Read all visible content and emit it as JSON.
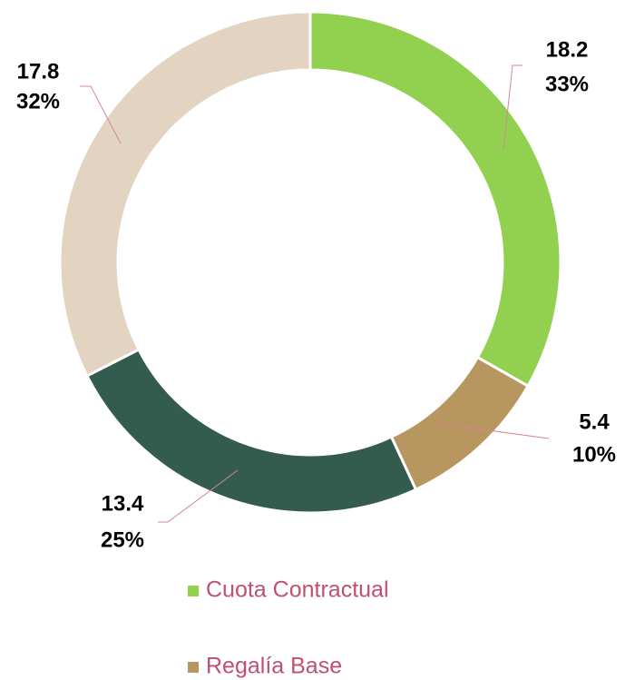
{
  "chart_data": {
    "type": "donut",
    "categories": [
      "Cuota Contractual",
      "Regalía Base",
      null,
      null
    ],
    "values": [
      18.2,
      5.4,
      13.4,
      17.8
    ],
    "percent_labels": [
      "33%",
      "10%",
      "25%",
      "32%"
    ],
    "colors": [
      "#92d050",
      "#b89660",
      "#335b4e",
      "#e2d4c0"
    ],
    "legend": "bottom"
  }
}
